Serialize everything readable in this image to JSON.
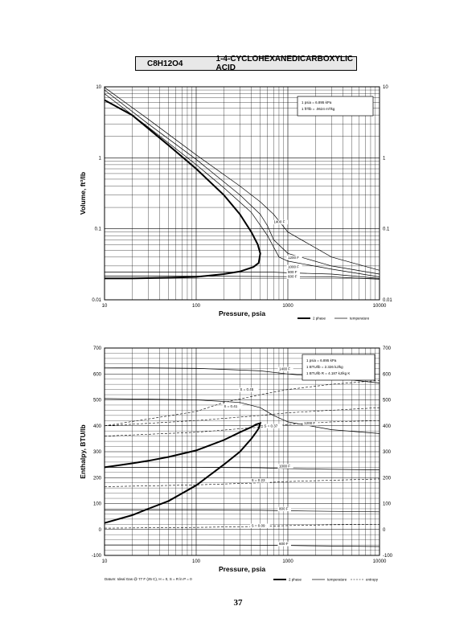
{
  "header": {
    "formula": "C8H12O4",
    "compound": "1-4-CYCLOHEXANEDICARBOXYLIC ACID"
  },
  "page_number": "37",
  "chart_data": [
    {
      "type": "line",
      "title": "",
      "xlabel": "Pressure,  psia",
      "ylabel": "Volume, ft^3/lb",
      "x_scale": "log",
      "y_scale": "log",
      "xlim": [
        10,
        10000
      ],
      "ylim": [
        0.01,
        10
      ],
      "x_ticks": [
        "10",
        "100",
        "1000",
        "10000"
      ],
      "y_ticks": [
        "10",
        "1",
        "0.1",
        "0.01"
      ],
      "y_ticks_right": [
        "10",
        "1",
        "0.1",
        "0.01"
      ],
      "grid": true,
      "notes": [
        "1 psia  =  6.895 kPa",
        "1 ft^3/lb  =  .0624 m^3/kg"
      ],
      "legend": [
        {
          "label": "2 phase",
          "style": "thick"
        },
        {
          "label": "temperature",
          "style": "thin"
        }
      ],
      "series": [
        {
          "name": "2 phase",
          "style": "thick",
          "x": [
            10,
            20,
            50,
            100,
            200,
            300,
            400,
            470,
            500,
            480,
            420,
            300,
            200,
            100,
            50,
            20,
            10
          ],
          "y": [
            6.5,
            4.0,
            1.5,
            0.7,
            0.3,
            0.16,
            0.09,
            0.06,
            0.045,
            0.033,
            0.029,
            0.025,
            0.023,
            0.021,
            0.0205,
            0.02,
            0.02
          ]
        },
        {
          "name": "1400 F",
          "style": "thin",
          "x": [
            10,
            30,
            100,
            300,
            500,
            700,
            1000,
            3000,
            10000
          ],
          "y": [
            9.8,
            3.5,
            1.1,
            0.4,
            0.24,
            0.16,
            0.09,
            0.04,
            0.026
          ]
        },
        {
          "name": "1200 F",
          "style": "thin",
          "x": [
            10,
            30,
            100,
            300,
            500,
            600,
            700,
            1000,
            3000,
            10000
          ],
          "y": [
            9.0,
            3.0,
            0.95,
            0.3,
            0.16,
            0.11,
            0.07,
            0.045,
            0.03,
            0.023
          ]
        },
        {
          "name": "1000 F",
          "style": "thin",
          "x": [
            10,
            30,
            100,
            200,
            400,
            600,
            800,
            1000,
            3000,
            10000
          ],
          "y": [
            8.0,
            2.7,
            0.8,
            0.38,
            0.17,
            0.08,
            0.04,
            0.035,
            0.027,
            0.021
          ]
        },
        {
          "name": "800 F",
          "style": "thin",
          "x": [
            10,
            100,
            700,
            1000,
            3000,
            10000
          ],
          "y": [
            0.0245,
            0.0245,
            0.0245,
            0.024,
            0.023,
            0.02
          ]
        },
        {
          "name": "600 F",
          "style": "thin",
          "x": [
            10,
            100,
            1000,
            3000,
            10000
          ],
          "y": [
            0.0215,
            0.0215,
            0.0212,
            0.021,
            0.0195
          ]
        }
      ],
      "annotations": [
        {
          "text": "1400 F",
          "x": 700,
          "y": 0.12
        },
        {
          "text": "1200 F",
          "x": 1000,
          "y": 0.038
        },
        {
          "text": "1000 F",
          "x": 1000,
          "y": 0.028
        },
        {
          "text": "800 F",
          "x": 1000,
          "y": 0.0235
        },
        {
          "text": "600 F",
          "x": 1000,
          "y": 0.0205
        }
      ]
    },
    {
      "type": "line",
      "title": "",
      "xlabel": "Pressure,  psia",
      "ylabel": "Enthalpy, BTU/lb",
      "x_scale": "log",
      "y_scale": "linear",
      "xlim": [
        10,
        10000
      ],
      "ylim": [
        -100,
        700
      ],
      "x_ticks": [
        "10",
        "100",
        "1000",
        "10000"
      ],
      "y_ticks": [
        "700",
        "600",
        "500",
        "400",
        "300",
        "200",
        "100",
        "0",
        "-100"
      ],
      "y_ticks_right": [
        "700",
        "600",
        "500",
        "400",
        "300",
        "200",
        "100",
        "0",
        "-100"
      ],
      "grid": true,
      "notes": [
        "1 psia  =  6.895 kPa",
        "1 BTU/lb  =  2.326 kJ/kg",
        "1 BTU/lb R  =  4.187 kJ/kg K"
      ],
      "footnote": "Datum: Ideal Gas @ 77 F (25 C),  H = 0,  S = R ln P = 0",
      "legend": [
        {
          "label": "2 phase",
          "style": "thick"
        },
        {
          "label": "temperature",
          "style": "thin"
        },
        {
          "label": "entropy",
          "style": "dashed"
        }
      ],
      "series": [
        {
          "name": "2 phase",
          "style": "thick",
          "x": [
            10,
            20,
            30,
            50,
            100,
            200,
            300,
            400,
            450,
            500,
            480,
            450,
            400,
            300,
            200,
            100,
            50,
            30,
            20,
            10
          ],
          "y": [
            240,
            255,
            265,
            280,
            305,
            345,
            375,
            395,
            405,
            410,
            390,
            375,
            350,
            300,
            250,
            170,
            110,
            80,
            55,
            25
          ]
        },
        {
          "name": "1400 F",
          "style": "thin",
          "x": [
            10,
            100,
            500,
            1000,
            3000,
            10000
          ],
          "y": [
            625,
            622,
            612,
            600,
            585,
            565
          ]
        },
        {
          "name": "1200 F",
          "style": "thin",
          "x": [
            10,
            100,
            300,
            500,
            700,
            1000,
            3000,
            10000
          ],
          "y": [
            505,
            500,
            490,
            470,
            440,
            415,
            385,
            370
          ]
        },
        {
          "name": "1000 F",
          "style": "thin",
          "x": [
            10,
            100,
            500,
            1000,
            3000,
            10000
          ],
          "y": [
            240,
            240,
            238,
            235,
            232,
            230
          ]
        },
        {
          "name": "800 F",
          "style": "thin",
          "x": [
            10,
            100,
            500,
            1000,
            3000,
            10000
          ],
          "y": [
            75,
            75,
            74,
            72,
            70,
            68
          ]
        },
        {
          "name": "600 F",
          "style": "thin",
          "x": [
            10,
            100,
            500,
            1000,
            3000,
            10000
          ],
          "y": [
            -60,
            -60,
            -61,
            -62,
            -64,
            -66
          ]
        },
        {
          "name": "S = 0.45",
          "style": "dashed",
          "x": [
            10,
            100,
            200,
            500,
            1000,
            3000,
            10000
          ],
          "y": [
            400,
            455,
            490,
            520,
            540,
            560,
            575
          ]
        },
        {
          "name": "S = 0.41",
          "style": "dashed",
          "x": [
            10,
            100,
            500,
            1000,
            3000,
            10000
          ],
          "y": [
            400,
            420,
            440,
            450,
            460,
            470
          ]
        },
        {
          "name": "S = 0.37",
          "style": "dashed",
          "x": [
            10,
            100,
            500,
            1000,
            3000,
            10000
          ],
          "y": [
            360,
            375,
            395,
            405,
            415,
            420
          ]
        },
        {
          "name": "S = 0.23",
          "style": "dashed",
          "x": [
            10,
            100,
            500,
            1000,
            3000,
            10000
          ],
          "y": [
            165,
            172,
            180,
            185,
            190,
            195
          ]
        },
        {
          "name": "S = 0.09",
          "style": "dashed",
          "x": [
            10,
            100,
            500,
            1000,
            3000,
            10000
          ],
          "y": [
            5,
            8,
            12,
            15,
            18,
            20
          ]
        }
      ],
      "annotations": [
        {
          "text": "1400 F",
          "x": 800,
          "y": 615
        },
        {
          "text": "1200 F",
          "x": 1500,
          "y": 405
        },
        {
          "text": "1000 F",
          "x": 800,
          "y": 240
        },
        {
          "text": "800 F",
          "x": 800,
          "y": 75
        },
        {
          "text": "600 F",
          "x": 800,
          "y": -60
        },
        {
          "text": "S = 0.45",
          "x": 300,
          "y": 535
        },
        {
          "text": "S = 0.41",
          "x": 200,
          "y": 470
        },
        {
          "text": "S = 0.37",
          "x": 550,
          "y": 395
        },
        {
          "text": "S = 0.23",
          "x": 400,
          "y": 185
        },
        {
          "text": "S = 0.09",
          "x": 400,
          "y": 10
        }
      ]
    }
  ]
}
